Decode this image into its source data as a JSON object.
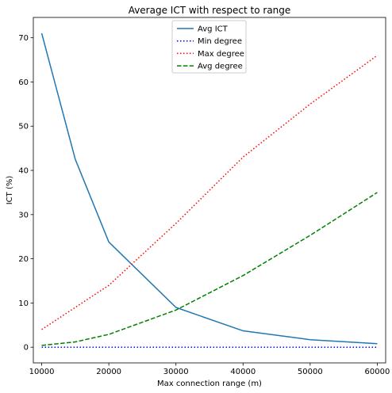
{
  "chart_data": {
    "type": "line",
    "title": "Average ICT with respect to range",
    "xlabel": "Max connection range (m)",
    "ylabel": "ICT (%)",
    "x": [
      10000,
      15000,
      20000,
      30000,
      40000,
      50000,
      60000
    ],
    "xlim": [
      8750,
      61250
    ],
    "ylim": [
      -3.55,
      74.6
    ],
    "xticks": [
      10000,
      20000,
      30000,
      40000,
      50000,
      60000
    ],
    "yticks": [
      0,
      10,
      20,
      30,
      40,
      50,
      60,
      70
    ],
    "grid": false,
    "legend_position": "top-center",
    "series": [
      {
        "name": "Avg ICT",
        "color": "#1f77b4",
        "style": "solid",
        "values": [
          71.0,
          42.5,
          23.8,
          9.0,
          3.7,
          1.7,
          0.8
        ]
      },
      {
        "name": "Min degree",
        "color": "#0000ff",
        "style": "dotted",
        "values": [
          0,
          0,
          0,
          0,
          0,
          0,
          0
        ]
      },
      {
        "name": "Max degree",
        "color": "#ff0000",
        "style": "dotted",
        "values": [
          4.0,
          9.0,
          14.0,
          28.0,
          43.0,
          55.0,
          66.0
        ]
      },
      {
        "name": "Avg degree",
        "color": "#008000",
        "style": "dashed",
        "values": [
          0.4,
          1.2,
          2.9,
          8.4,
          16.2,
          25.3,
          35.0
        ]
      }
    ]
  }
}
